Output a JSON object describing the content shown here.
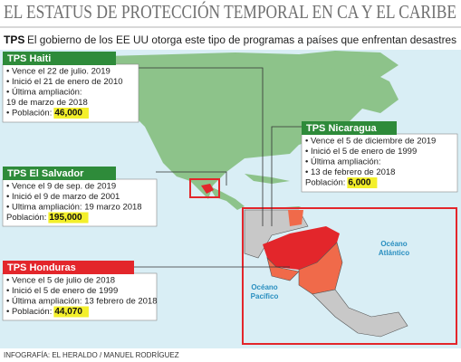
{
  "header": {
    "title": "EL ESTATUS DE PROTECCIÓN TEMPORAL EN CA Y EL CARIBE",
    "subtitle_tag": "TPS",
    "subtitle": "El gobierno de los EE UU otorga este tipo de programas a países que enfrentan desastres"
  },
  "boxes": [
    {
      "title": "TPS Haiti",
      "items": [
        "• Vence el 22 de julio. 2019",
        "• Inició el 21 de enero de 2010",
        "• Última ampliación:",
        "  19 de marzo de 2018"
      ],
      "population_label": "• Población:",
      "population": "46,000"
    },
    {
      "title": "TPS Nicaragua",
      "items": [
        "• Vence el 5 de diciembre de 2019",
        "• Inició el 5 de enero de 1999",
        "• Última ampliación:",
        "• 13 de febrero de 2018"
      ],
      "population_label": "  Población:",
      "population": "6,000"
    },
    {
      "title": "TPS El Salvador",
      "items": [
        "• Vence el 9 de sep. de 2019",
        "• Inició el 9 de marzo de  2001",
        "• Ultima ampliación: 19 marzo 2018"
      ],
      "population_label": "  Población:",
      "population": "195,000"
    },
    {
      "title": "TPS Honduras",
      "items": [
        "• Vence el 5 de julio de 2018",
        "• Inició el 5 de enero de 1999",
        "• Última ampliación: 13 febrero de 2018"
      ],
      "population_label": "• Población:",
      "population": "44,070"
    }
  ],
  "map_labels": [
    [
      "Océano",
      "Atlántico"
    ],
    [
      "Océano",
      "Pacífico"
    ]
  ],
  "credit": "INFOGRAFÍA: EL HERALDO / MANUEL RODRÍGUEZ"
}
